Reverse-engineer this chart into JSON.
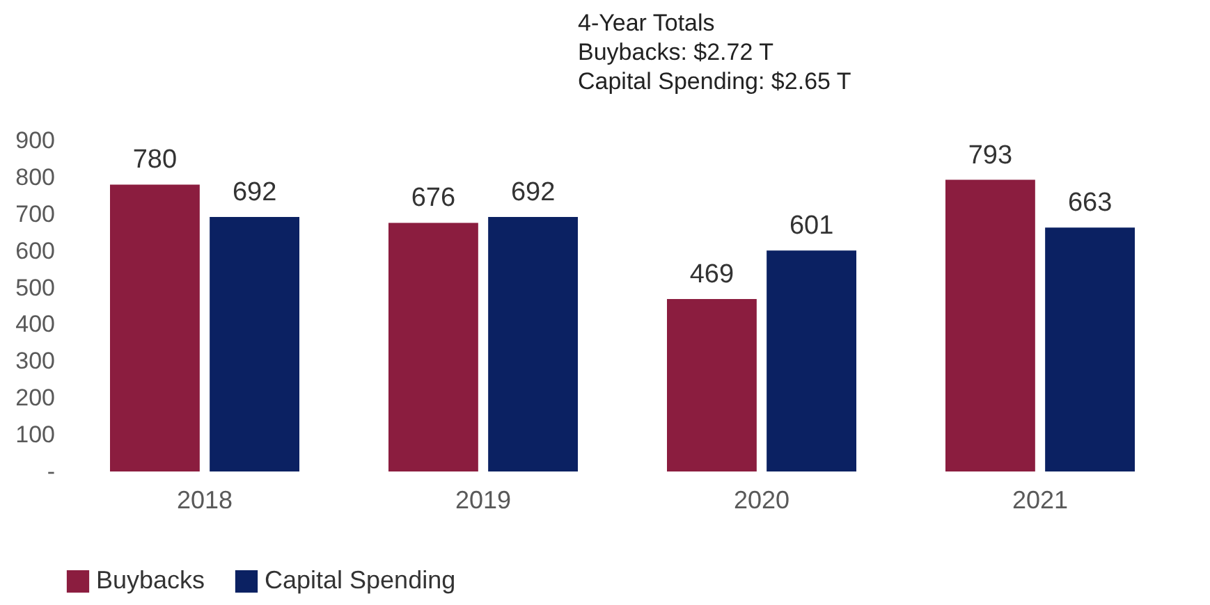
{
  "chart_data": {
    "type": "bar",
    "categories": [
      "2018",
      "2019",
      "2020",
      "2021"
    ],
    "series": [
      {
        "name": "Buybacks",
        "color": "#8b1d3f",
        "values": [
          780,
          676,
          469,
          793
        ]
      },
      {
        "name": "Capital Spending",
        "color": "#0b2162",
        "values": [
          692,
          692,
          601,
          663
        ]
      }
    ],
    "ylim": [
      0,
      900
    ],
    "yticks": [
      {
        "value": 0,
        "label": "-"
      },
      100,
      200,
      300,
      400,
      500,
      600,
      700,
      800,
      900
    ],
    "data_labels": true,
    "grid": false,
    "legend": "bottom",
    "annotations": [
      "4-Year Totals",
      "Buybacks: $2.72 T",
      "Capital Spending: $2.65 T"
    ]
  }
}
